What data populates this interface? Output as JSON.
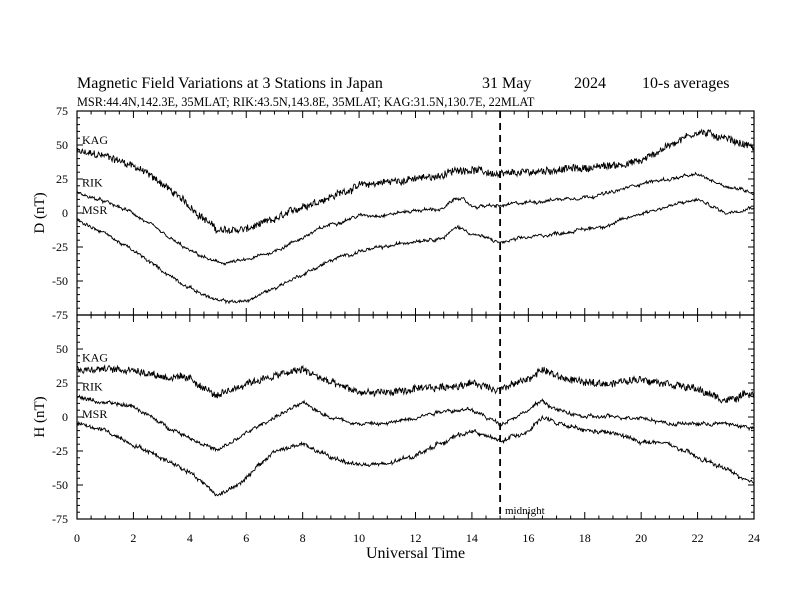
{
  "title": {
    "main": "Magnetic Field Variations at 3 Stations in Japan",
    "date": "31 May",
    "year": "2024",
    "averaging": "10-s averages",
    "stations_line": "MSR:44.4N,142.3E, 35MLAT;  RIK:43.5N,143.8E, 35MLAT;  KAG:31.5N,130.7E, 22MLAT"
  },
  "annotation": {
    "midnight_label": "midnight",
    "midnight_ut": 15
  },
  "colors": {
    "line": "#000000",
    "background": "#ffffff"
  },
  "chart_data": [
    {
      "type": "line",
      "panel": "top",
      "ylabel": "D (nT)",
      "xlabel": "",
      "xlim": [
        0,
        24
      ],
      "ylim": [
        -75,
        75
      ],
      "yticks": [
        -75,
        -50,
        -25,
        0,
        25,
        50,
        75
      ],
      "xticks": [
        0,
        2,
        4,
        6,
        8,
        10,
        12,
        14,
        16,
        18,
        20,
        22,
        24
      ],
      "grid": false,
      "x": [
        0,
        1,
        2,
        3,
        4,
        5,
        6,
        7,
        8,
        9,
        10,
        11,
        12,
        13,
        13.5,
        14,
        15,
        16,
        17,
        18,
        19,
        20,
        21,
        22,
        23,
        24
      ],
      "series": [
        {
          "name": "KAG",
          "noise": 2.5,
          "values": [
            45,
            42,
            35,
            22,
            5,
            -13,
            -12,
            -5,
            5,
            12,
            20,
            23,
            25,
            28,
            32,
            32,
            28,
            30,
            32,
            33,
            35,
            38,
            50,
            60,
            55,
            48
          ]
        },
        {
          "name": "RIK",
          "noise": 0.8,
          "values": [
            15,
            8,
            0,
            -15,
            -28,
            -37,
            -35,
            -28,
            -18,
            -8,
            -2,
            -1,
            2,
            3,
            12,
            5,
            5,
            8,
            10,
            12,
            15,
            22,
            25,
            28,
            20,
            15
          ]
        },
        {
          "name": "MSR",
          "noise": 0.8,
          "values": [
            -5,
            -15,
            -28,
            -42,
            -55,
            -65,
            -65,
            -55,
            -45,
            -35,
            -28,
            -25,
            -20,
            -18,
            -10,
            -15,
            -22,
            -18,
            -15,
            -12,
            -8,
            0,
            5,
            10,
            0,
            5
          ]
        }
      ]
    },
    {
      "type": "line",
      "panel": "bottom",
      "ylabel": "H (nT)",
      "xlabel": "Universal Time",
      "xlim": [
        0,
        24
      ],
      "ylim": [
        -75,
        75
      ],
      "yticks": [
        -75,
        -50,
        -25,
        0,
        25,
        50
      ],
      "xticks": [
        0,
        2,
        4,
        6,
        8,
        10,
        12,
        14,
        16,
        18,
        20,
        22,
        24
      ],
      "xticklabels": [
        "0",
        "2",
        "4",
        "6",
        "8",
        "10",
        "12",
        "14",
        "16",
        "18",
        "20",
        "22",
        "24"
      ],
      "grid": false,
      "x": [
        0,
        1,
        2,
        3,
        4,
        5,
        6,
        7,
        8,
        9,
        10,
        11,
        12,
        13,
        14,
        15,
        16,
        16.5,
        17,
        18,
        19,
        20,
        21,
        22,
        23,
        24
      ],
      "series": [
        {
          "name": "KAG",
          "noise": 2.5,
          "values": [
            35,
            35,
            35,
            30,
            28,
            15,
            25,
            30,
            35,
            25,
            18,
            18,
            20,
            22,
            25,
            20,
            28,
            35,
            30,
            25,
            25,
            28,
            25,
            20,
            12,
            18
          ]
        },
        {
          "name": "RIK",
          "noise": 1.0,
          "values": [
            15,
            10,
            8,
            -5,
            -15,
            -25,
            -12,
            0,
            10,
            0,
            -5,
            -5,
            0,
            5,
            5,
            -5,
            5,
            12,
            5,
            0,
            0,
            0,
            -5,
            -5,
            -5,
            -8
          ]
        },
        {
          "name": "MSR",
          "noise": 1.2,
          "values": [
            -5,
            -10,
            -20,
            -30,
            -40,
            -58,
            -45,
            -25,
            -20,
            -30,
            -35,
            -35,
            -28,
            -18,
            -10,
            -18,
            -10,
            0,
            -5,
            -10,
            -12,
            -18,
            -20,
            -30,
            -38,
            -50
          ]
        }
      ]
    }
  ]
}
